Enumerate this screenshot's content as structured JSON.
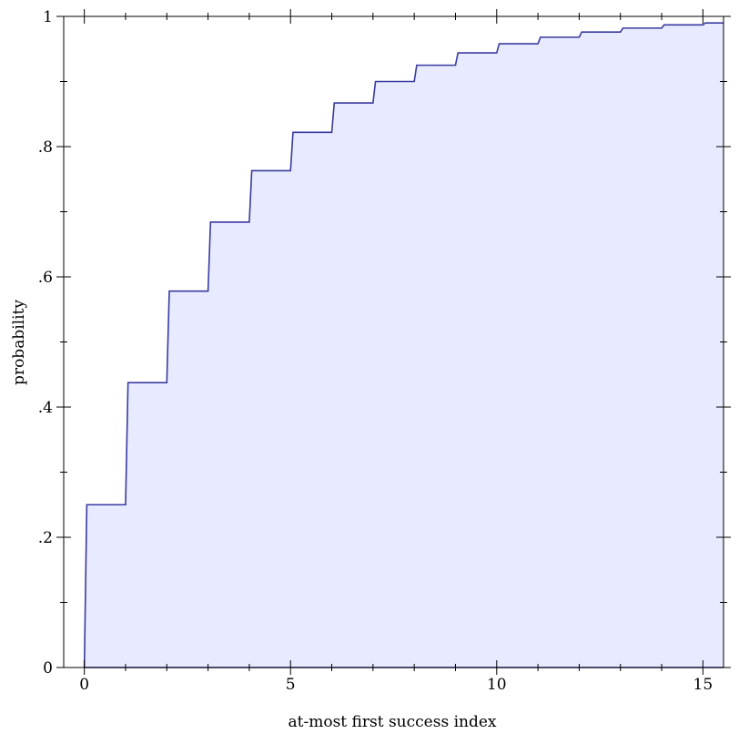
{
  "chart_data": {
    "type": "area",
    "title": "",
    "xlabel": "at-most first success index",
    "ylabel": "probability",
    "xlim": [
      -0.5,
      15.5
    ],
    "ylim": [
      0,
      1
    ],
    "x_ticks": [
      0,
      5,
      10,
      15
    ],
    "x_tick_labels": [
      "0",
      "5",
      "10",
      "15"
    ],
    "y_ticks": [
      0,
      0.2,
      0.4,
      0.6,
      0.8,
      1
    ],
    "y_tick_labels": [
      "0",
      ".2",
      ".4",
      ".6",
      ".8",
      "1"
    ],
    "grid": false,
    "line_color": "#3a3aa0",
    "fill_color": "#e8ebff",
    "series": [
      {
        "x": [
          0,
          1,
          2,
          3,
          4,
          5,
          6,
          7,
          8,
          9,
          10,
          11,
          12,
          13,
          14,
          15
        ],
        "y": [
          0.25,
          0.4375,
          0.578,
          0.684,
          0.763,
          0.822,
          0.867,
          0.9,
          0.925,
          0.944,
          0.958,
          0.968,
          0.976,
          0.982,
          0.987,
          0.99
        ]
      }
    ]
  }
}
